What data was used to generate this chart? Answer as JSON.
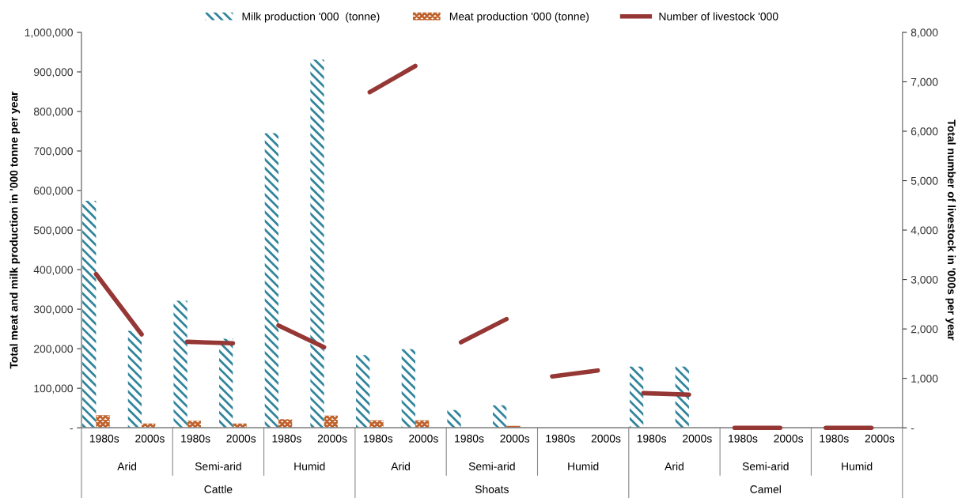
{
  "chart_data": {
    "type": "bar",
    "categories": [
      "1980s",
      "2000s",
      "1980s",
      "2000s",
      "1980s",
      "2000s",
      "1980s",
      "2000s",
      "1980s",
      "2000s",
      "1980s",
      "2000s",
      "1980s",
      "2000s",
      "1980s",
      "2000s",
      "1980s",
      "2000s"
    ],
    "series": [
      {
        "name": "Milk production '000  (tonne)",
        "color": "#31859c",
        "values": [
          574000,
          245000,
          321000,
          225000,
          745000,
          931000,
          184000,
          199000,
          45000,
          57000,
          null,
          null,
          155000,
          155000,
          null,
          null,
          null,
          null
        ]
      },
      {
        "name": "Meat production '000 (tonne)",
        "color": "#c0622c",
        "values": [
          32000,
          11000,
          18000,
          11000,
          22000,
          31000,
          19000,
          19000,
          null,
          5000,
          null,
          null,
          null,
          null,
          null,
          null,
          null,
          null
        ]
      },
      {
        "name": "Number of livestock '000",
        "type": "line",
        "axis": "y2",
        "color": "#953735",
        "values": [
          3110,
          1890,
          1740,
          1710,
          2070,
          1630,
          6790,
          7320,
          1730,
          2200,
          1040,
          1160,
          700,
          670,
          0,
          0,
          0,
          0
        ]
      }
    ],
    "ylabel": "Total meat and milk production in '000 tonne per year",
    "y2label": "Total number of livestock in '000s per year",
    "ylim": [
      0,
      1000000
    ],
    "yticks": [
      {
        "value": 0,
        "label": "-"
      },
      {
        "value": 100000,
        "label": "100,000"
      },
      {
        "value": 200000,
        "label": "200,000"
      },
      {
        "value": 300000,
        "label": "300,000"
      },
      {
        "value": 400000,
        "label": "400,000"
      },
      {
        "value": 500000,
        "label": "500,000"
      },
      {
        "value": 600000,
        "label": "600,000"
      },
      {
        "value": 700000,
        "label": "700,000"
      },
      {
        "value": 800000,
        "label": "800,000"
      },
      {
        "value": 900000,
        "label": "900,000"
      },
      {
        "value": 1000000,
        "label": "1,000,000"
      }
    ],
    "y2lim": [
      0,
      8000
    ],
    "y2ticks": [
      {
        "value": 0,
        "label": "-"
      },
      {
        "value": 1000,
        "label": "1,000"
      },
      {
        "value": 2000,
        "label": "2,000"
      },
      {
        "value": 3000,
        "label": "3,000"
      },
      {
        "value": 4000,
        "label": "4,000"
      },
      {
        "value": 5000,
        "label": "5,000"
      },
      {
        "value": 6000,
        "label": "6,000"
      },
      {
        "value": 7000,
        "label": "7,000"
      },
      {
        "value": 8000,
        "label": "8,000"
      }
    ],
    "annotations": [
      "Arid",
      "Semi-arid",
      "Humid",
      "Arid",
      "Semi-arid",
      "Humid",
      "Arid",
      "Semi-arid",
      "Humid",
      "Cattle",
      "Shoats",
      "Camel"
    ],
    "legend": "top",
    "grid": false
  }
}
